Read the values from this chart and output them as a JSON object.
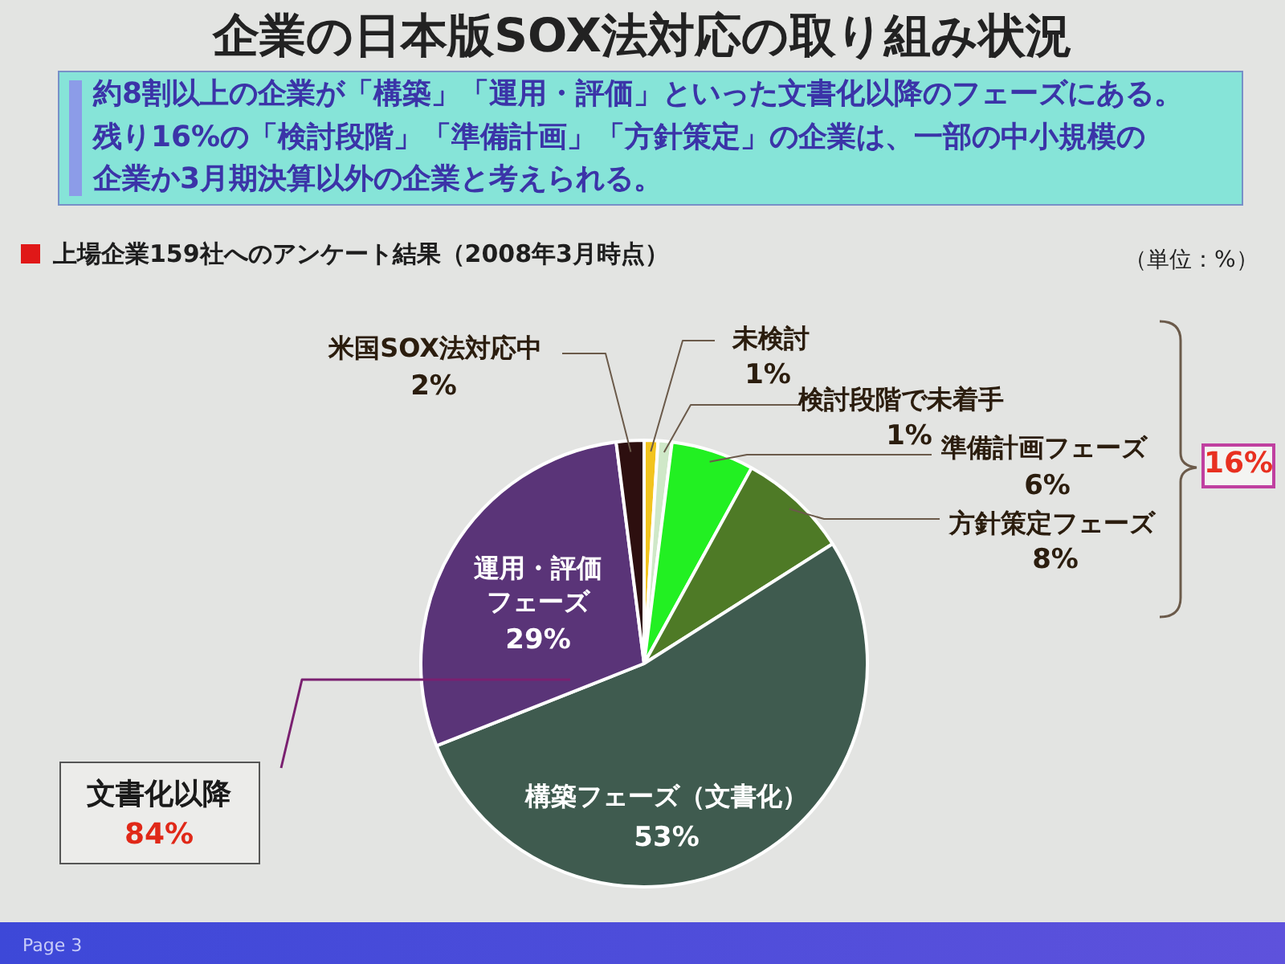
{
  "chart_data": {
    "type": "pie",
    "title": "企業の日本版SOX法対応の取り組み状況",
    "subtitle": "約8割以上の企業が「構築」「運用・評価」といった文書化以降のフェーズにある。残り16%の「検討段階」「準備計画」「方針策定」の企業は、一部の中小規模の企業か3月期決算以外の企業と考えられる。",
    "categories": [
      "未検討",
      "検討段階で未着手",
      "準備計画フェーズ",
      "方針策定フェーズ",
      "構築フェーズ（文書化）",
      "運用・評価フェーズ",
      "米国SOX法対応中"
    ],
    "values": [
      1,
      1,
      6,
      8,
      53,
      29,
      2
    ],
    "value_labels": [
      "1%",
      "1%",
      "6%",
      "8%",
      "53%",
      "29%",
      "2%"
    ],
    "colors": [
      "#f2c41e",
      "#cfe8c8",
      "#22f022",
      "#4e7a26",
      "#3f5b4f",
      "#5a3478",
      "#2d0f0f"
    ],
    "annotations": [
      "上場企業159社へのアンケート結果（2008年3月時点）",
      "（単位：%）",
      "16%",
      "文書化以降",
      "84%",
      "Page 3"
    ]
  }
}
